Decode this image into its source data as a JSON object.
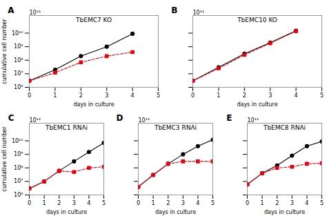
{
  "chart_data": [
    {
      "type": "line",
      "title": "TbEMC7 KO",
      "xlabel": "days in culture",
      "ylabel": "cumulative cell number",
      "annotations": [
        "A",
        "10¹¹"
      ],
      "log": "y",
      "grid": false,
      "x": [
        0,
        1,
        2,
        3,
        4
      ],
      "series": [
        {
          "color": "#000000",
          "marker": "circle",
          "line_style": "solid",
          "values": [
            3000000.0,
            20000000.0,
            200000000.0,
            1000000000.0,
            9000000000.0
          ]
        },
        {
          "color": "#e8000d",
          "marker": "square",
          "line_style": "dashed",
          "values": [
            3000000.0,
            12000000.0,
            70000000.0,
            200000000.0,
            400000000.0
          ],
          "errors": [
            0,
            2000000.0,
            15000000.0,
            30000000.0,
            60000000.0
          ]
        }
      ],
      "xlim": [
        0,
        5
      ],
      "xticks": [
        0,
        1,
        2,
        3,
        4,
        5
      ],
      "ylim": [
        1000000.0,
        200000000000.0
      ],
      "yticks": [
        {
          "value": 1000000.0,
          "label": "10⁶"
        },
        {
          "value": 10000000.0,
          "label": "10⁷"
        },
        {
          "value": 100000000.0,
          "label": "10⁸"
        },
        {
          "value": 1000000000.0,
          "label": "10⁹"
        },
        {
          "value": 10000000000.0,
          "label": "10¹⁰"
        }
      ]
    },
    {
      "type": "line",
      "title": "TbEMC10 KO",
      "xlabel": "days in culture",
      "annotations": [
        "B",
        "10¹¹"
      ],
      "log": "y",
      "grid": false,
      "tick_labels": "x",
      "x": [
        0,
        1,
        2,
        3,
        4
      ],
      "series": [
        {
          "color": "#000000",
          "marker": "circle",
          "line_style": "solid",
          "values": [
            3000000.0,
            30000000.0,
            300000000.0,
            2000000000.0,
            15000000000.0
          ]
        },
        {
          "color": "#e8000d",
          "marker": "square",
          "line_style": "dashed",
          "values": [
            3000000.0,
            25000000.0,
            250000000.0,
            1800000000.0,
            14000000000.0
          ],
          "errors": [
            0,
            2000000.0,
            20000000.0,
            100000000.0,
            500000000.0
          ]
        }
      ],
      "xlim": [
        0,
        5
      ],
      "xticks": [
        0,
        1,
        2,
        3,
        4,
        5
      ],
      "ylim": [
        1000000.0,
        200000000000.0
      ],
      "yticks": [
        1000000.0,
        10000000.0,
        100000000.0,
        1000000000.0,
        10000000000.0
      ]
    },
    {
      "type": "line",
      "title": "TbEMC1 RNAi",
      "xlabel": "days in culture",
      "ylabel": "cumulative cell number",
      "annotations": [
        "C",
        "10¹¹"
      ],
      "log": "y",
      "grid": false,
      "x": [
        0,
        1,
        2,
        3,
        4,
        5
      ],
      "series": [
        {
          "color": "#000000",
          "marker": "circle",
          "line_style": "solid",
          "values": [
            3000000.0,
            10000000.0,
            60000000.0,
            300000000.0,
            1500000000.0,
            7000000000.0
          ]
        },
        {
          "color": "#e8000d",
          "marker": "square",
          "line_style": "dashed",
          "values": [
            3000000.0,
            10000000.0,
            60000000.0,
            50000000.0,
            100000000.0,
            120000000.0
          ],
          "errors": [
            0,
            1000000.0,
            10000000.0,
            10000000.0,
            15000000.0,
            20000000.0
          ]
        }
      ],
      "xlim": [
        0,
        5
      ],
      "xticks": [
        0,
        1,
        2,
        3,
        4,
        5
      ],
      "ylim": [
        1000000.0,
        200000000000.0
      ],
      "yticks": [
        {
          "value": 1000000.0,
          "label": "10⁶"
        },
        {
          "value": 10000000.0,
          "label": "10⁷"
        },
        {
          "value": 100000000.0,
          "label": "10⁸"
        },
        {
          "value": 1000000000.0,
          "label": "10⁹"
        },
        {
          "value": 10000000000.0,
          "label": "10¹⁰"
        }
      ]
    },
    {
      "type": "line",
      "title": "TbEMC3 RNAi",
      "xlabel": "days in culture",
      "annotations": [
        "D",
        "10¹¹"
      ],
      "log": "y",
      "grid": false,
      "tick_labels": "x",
      "x": [
        0,
        1,
        2,
        3,
        4,
        5
      ],
      "series": [
        {
          "color": "#000000",
          "marker": "circle",
          "line_style": "solid",
          "values": [
            4000000.0,
            30000000.0,
            200000000.0,
            1000000000.0,
            4000000000.0,
            12000000000.0
          ]
        },
        {
          "color": "#e8000d",
          "marker": "square",
          "line_style": "dashed",
          "values": [
            4000000.0,
            30000000.0,
            200000000.0,
            300000000.0,
            300000000.0,
            300000000.0
          ],
          "errors": [
            0,
            3000000.0,
            30000000.0,
            40000000.0,
            50000000.0,
            50000000.0
          ]
        }
      ],
      "xlim": [
        0,
        5
      ],
      "xticks": [
        0,
        1,
        2,
        3,
        4,
        5
      ],
      "ylim": [
        1000000.0,
        200000000000.0
      ],
      "yticks": [
        1000000.0,
        10000000.0,
        100000000.0,
        1000000000.0,
        10000000000.0
      ]
    },
    {
      "type": "line",
      "title": "TbEMC8 RNAi",
      "xlabel": "days in culture",
      "annotations": [
        "E",
        "10¹¹"
      ],
      "log": "y",
      "grid": false,
      "tick_labels": "x",
      "x": [
        0,
        1,
        2,
        3,
        4,
        5
      ],
      "series": [
        {
          "color": "#000000",
          "marker": "circle",
          "line_style": "solid",
          "values": [
            6000000.0,
            40000000.0,
            150000000.0,
            800000000.0,
            4000000000.0,
            9000000000.0
          ]
        },
        {
          "color": "#e8000d",
          "marker": "square",
          "line_style": "dashed",
          "values": [
            6000000.0,
            40000000.0,
            100000000.0,
            120000000.0,
            200000000.0,
            220000000.0
          ],
          "errors": [
            0,
            5000000.0,
            20000000.0,
            20000000.0,
            30000000.0,
            40000000.0
          ]
        }
      ],
      "xlim": [
        0,
        5
      ],
      "xticks": [
        0,
        1,
        2,
        3,
        4,
        5
      ],
      "ylim": [
        1000000.0,
        200000000000.0
      ],
      "yticks": [
        1000000.0,
        10000000.0,
        100000000.0,
        1000000000.0,
        10000000000.0
      ]
    }
  ]
}
